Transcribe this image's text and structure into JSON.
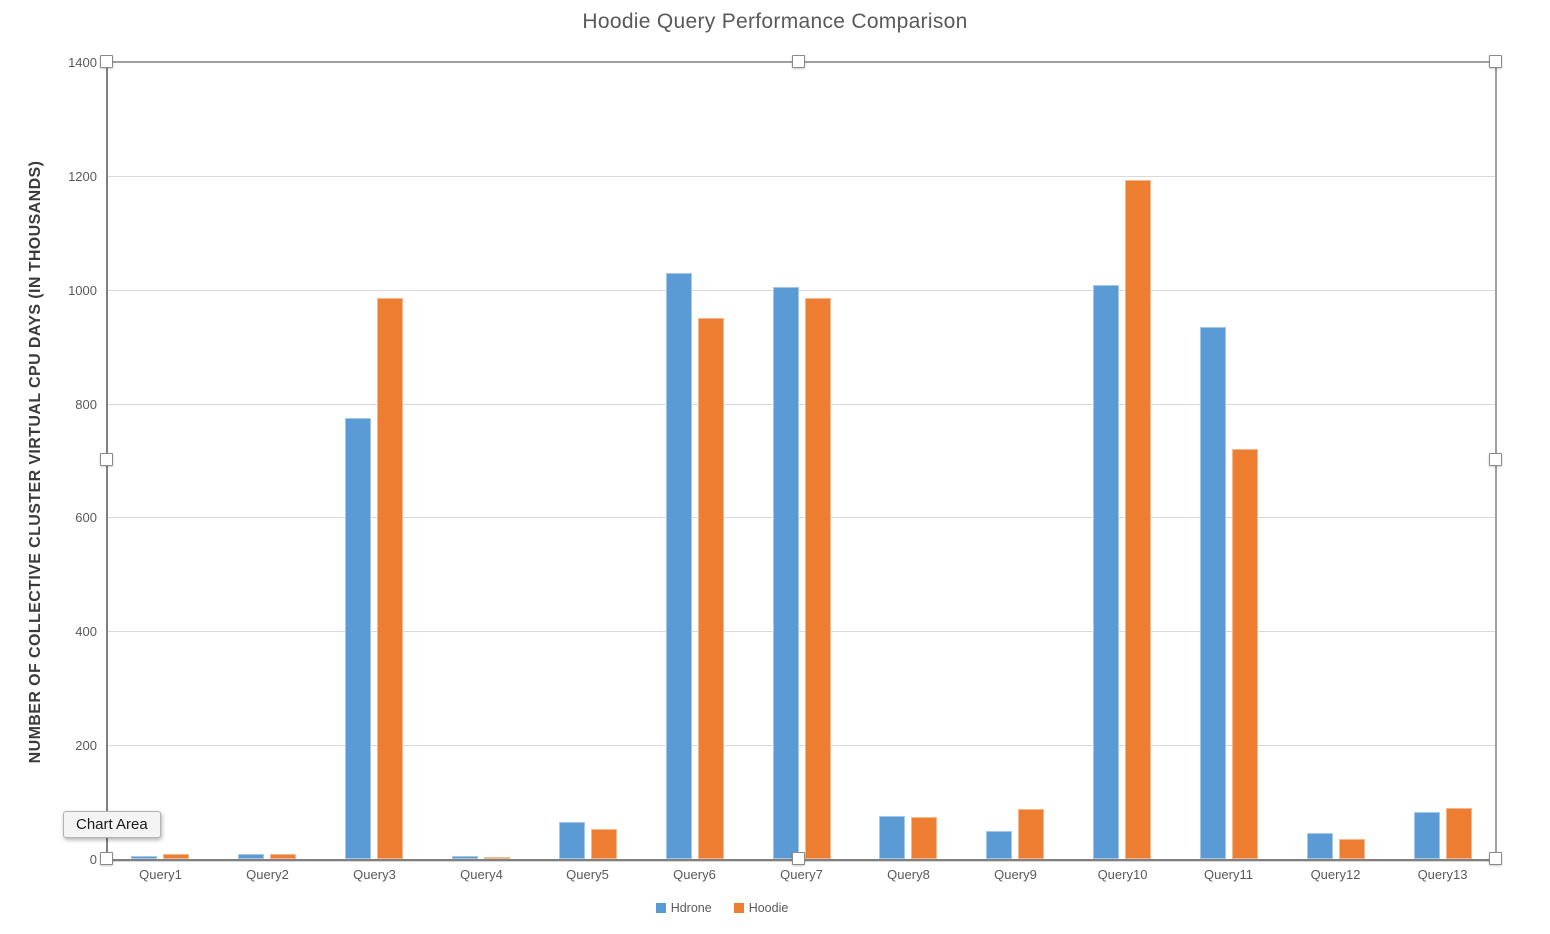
{
  "chart_data": {
    "type": "bar",
    "title": "Hoodie Query Performance Comparison",
    "ylabel": "NUMBER OF COLLECTIVE CLUSTER VIRTUAL CPU DAYS (IN THOUSANDS)",
    "xlabel": "",
    "categories": [
      "Query1",
      "Query2",
      "Query3",
      "Query4",
      "Query5",
      "Query6",
      "Query7",
      "Query8",
      "Query9",
      "Query10",
      "Query11",
      "Query12",
      "Query13"
    ],
    "series": [
      {
        "name": "Hdrone",
        "color": "#5B9BD5",
        "values": [
          5,
          9,
          775,
          5,
          65,
          1030,
          1005,
          75,
          50,
          1008,
          935,
          45,
          82
        ]
      },
      {
        "name": "Hoodie",
        "color": "#ED7D31",
        "values": [
          8,
          8,
          985,
          4,
          52,
          950,
          985,
          74,
          88,
          1193,
          720,
          35,
          90
        ]
      }
    ],
    "ylim": [
      0,
      1400
    ],
    "yticks": [
      0,
      200,
      400,
      600,
      800,
      1000,
      1200,
      1400
    ],
    "grid": true,
    "legend_position": "bottom",
    "axis_color": "#808080",
    "gridline_color": "#D9D9D9",
    "text_color": "#595959"
  },
  "selection": {
    "tooltip_label": "Chart Area"
  }
}
